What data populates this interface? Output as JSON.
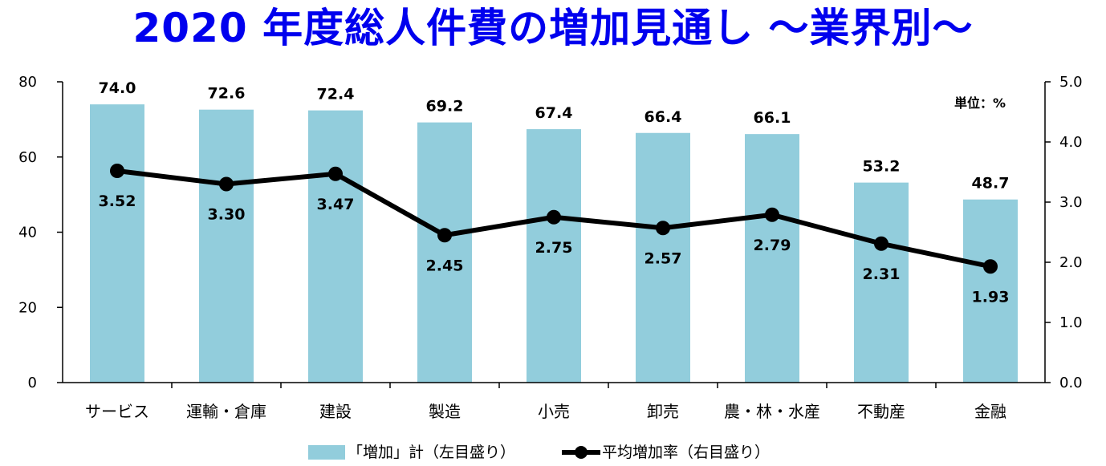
{
  "title": "2020 年度総人件費の増加見通し ～業界別～",
  "chart_data": {
    "type": "bar+line",
    "categories": [
      "サービス",
      "運輸・倉庫",
      "建設",
      "製造",
      "小売",
      "卸売",
      "農・林・水産",
      "不動産",
      "金融"
    ],
    "series": [
      {
        "name": "「増加」計（左目盛り）",
        "type": "bar",
        "axis": "left",
        "values": [
          74.0,
          72.6,
          72.4,
          69.2,
          67.4,
          66.4,
          66.1,
          53.2,
          48.7
        ],
        "labels": [
          "74.0",
          "72.6",
          "72.4",
          "69.2",
          "67.4",
          "66.4",
          "66.1",
          "53.2",
          "48.7"
        ],
        "color": "#92cddc"
      },
      {
        "name": "平均増加率（右目盛り）",
        "type": "line",
        "axis": "right",
        "values": [
          3.52,
          3.3,
          3.47,
          2.45,
          2.75,
          2.57,
          2.79,
          2.31,
          1.93
        ],
        "labels": [
          "3.52",
          "3.30",
          "3.47",
          "2.45",
          "2.75",
          "2.57",
          "2.79",
          "2.31",
          "1.93"
        ],
        "color": "#000000"
      }
    ],
    "y_left": {
      "min": 0,
      "max": 80,
      "ticks": [
        "0",
        "20",
        "40",
        "60",
        "80"
      ]
    },
    "y_right": {
      "min": 0,
      "max": 5,
      "ticks": [
        "0.0",
        "1.0",
        "2.0",
        "3.0",
        "4.0",
        "5.0"
      ]
    },
    "unit": "単位：%",
    "legend_position": "bottom",
    "grid": false
  }
}
